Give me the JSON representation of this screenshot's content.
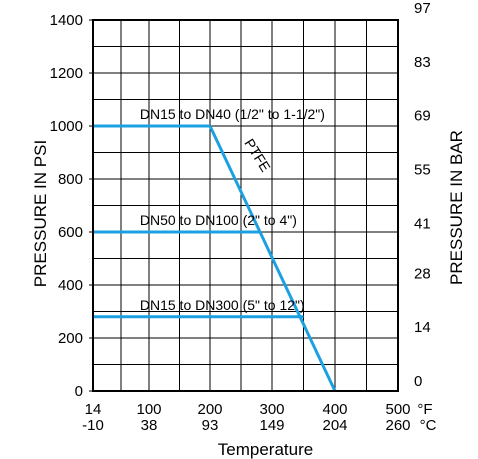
{
  "chart_data": {
    "type": "line",
    "title": "",
    "xlabel": "Temperature",
    "ylabel_left": "PRESSURE IN PSI",
    "ylabel_right": "PRESSURE IN BAR",
    "x_unit_top": "°F",
    "x_unit_bottom": "°C",
    "xlim": [
      14,
      500
    ],
    "ylim": [
      0,
      1400
    ],
    "grid": true,
    "x_ticks": [
      {
        "f": "14",
        "c": "-10",
        "value": 14
      },
      {
        "f": "100",
        "c": "38",
        "value": 100
      },
      {
        "f": "200",
        "c": "93",
        "value": 200
      },
      {
        "f": "300",
        "c": "149",
        "value": 300
      },
      {
        "f": "400",
        "c": "204",
        "value": 400
      },
      {
        "f": "500",
        "c": "260",
        "value": 500
      }
    ],
    "y_ticks_left": [
      "0",
      "200",
      "400",
      "600",
      "800",
      "1000",
      "1200",
      "1400"
    ],
    "y_ticks_right": [
      {
        "label": "0",
        "psi": 0
      },
      {
        "label": "14",
        "psi": 203
      },
      {
        "label": "28",
        "psi": 406
      },
      {
        "label": "41",
        "psi": 595
      },
      {
        "label": "55",
        "psi": 798
      },
      {
        "label": "69",
        "psi": 1001
      },
      {
        "label": "83",
        "psi": 1204
      },
      {
        "label": "97",
        "psi": 1407
      }
    ],
    "series": [
      {
        "name": "PTFE",
        "x": [
          200,
          400
        ],
        "y": [
          1000,
          0
        ],
        "color": "#1ba1e2"
      },
      {
        "name": "DN15 to DN40 (1/2\" to 1-1/2\")",
        "x": [
          14,
          200
        ],
        "y": [
          1000,
          1000
        ],
        "color": "#1ba1e2"
      },
      {
        "name": "DN50 to DN100 (2\" to 4\")",
        "x": [
          14,
          280
        ],
        "y": [
          600,
          600
        ],
        "color": "#1ba1e2"
      },
      {
        "name": "DN15 to DN300 (5\" to 12\")",
        "x": [
          14,
          350
        ],
        "y": [
          280,
          280
        ],
        "color": "#1ba1e2"
      }
    ],
    "annotations": [
      {
        "text": "DN15 to DN40 (1/2\" to 1-1/2\")",
        "x": 86,
        "y": 1045
      },
      {
        "text": "DN50 to DN100 (2\" to 4\")",
        "x": 86,
        "y": 645
      },
      {
        "text": "DN15 to DN300 (5\" to 12\")",
        "x": 86,
        "y": 325
      }
    ],
    "series_label": {
      "text": "PTFE",
      "x": 270,
      "y": 880,
      "rotation": 58
    },
    "colors": {
      "line": "#1ba1e2",
      "grid": "#000000",
      "frame": "#000000"
    }
  }
}
